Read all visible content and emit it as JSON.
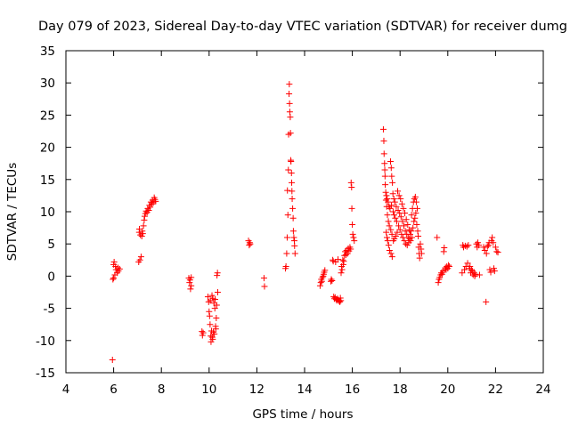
{
  "chart_data": {
    "type": "scatter",
    "title": "Day 079 of 2023, Sidereal Day-to-day VTEC variation (SDTVAR) for receiver dumg",
    "xlabel": "GPS time / hours",
    "ylabel": "SDTVAR / TECUs",
    "xlim": [
      4,
      24
    ],
    "ylim": [
      -15,
      35
    ],
    "xticks": [
      "4",
      "6",
      "8",
      "10",
      "12",
      "14",
      "16",
      "18",
      "20",
      "22",
      "24"
    ],
    "yticks": [
      "-15",
      "-10",
      "-5",
      "0",
      "5",
      "10",
      "15",
      "20",
      "25",
      "30",
      "35"
    ],
    "grid": false,
    "marker": "+",
    "color": "#ff0000",
    "series": [
      {
        "name": "SDTVAR",
        "points": [
          [
            5.95,
            -13.0
          ],
          [
            5.97,
            -0.5
          ],
          [
            6.0,
            -0.3
          ],
          [
            6.0,
            1.8
          ],
          [
            6.02,
            2.2
          ],
          [
            6.05,
            0.2
          ],
          [
            6.08,
            1.5
          ],
          [
            6.1,
            1.0
          ],
          [
            6.15,
            0.5
          ],
          [
            6.18,
            1.3
          ],
          [
            6.2,
            0.8
          ],
          [
            6.25,
            1.1
          ],
          [
            7.05,
            2.2
          ],
          [
            7.07,
            6.8
          ],
          [
            7.08,
            7.3
          ],
          [
            7.1,
            2.5
          ],
          [
            7.12,
            6.4
          ],
          [
            7.15,
            3.0
          ],
          [
            7.18,
            6.2
          ],
          [
            7.2,
            7.0
          ],
          [
            7.22,
            6.6
          ],
          [
            7.25,
            7.8
          ],
          [
            7.28,
            8.7
          ],
          [
            7.3,
            9.3
          ],
          [
            7.33,
            9.7
          ],
          [
            7.36,
            10.1
          ],
          [
            7.4,
            9.9
          ],
          [
            7.43,
            10.5
          ],
          [
            7.47,
            10.2
          ],
          [
            7.5,
            11.0
          ],
          [
            7.53,
            10.7
          ],
          [
            7.56,
            11.5
          ],
          [
            7.6,
            11.2
          ],
          [
            7.63,
            11.8
          ],
          [
            7.66,
            11.4
          ],
          [
            7.7,
            12.2
          ],
          [
            7.73,
            11.9
          ],
          [
            7.76,
            11.6
          ],
          [
            9.15,
            -0.3
          ],
          [
            9.18,
            -1.0
          ],
          [
            9.2,
            -0.6
          ],
          [
            9.22,
            -2.0
          ],
          [
            9.25,
            -0.2
          ],
          [
            9.25,
            -1.5
          ],
          [
            9.7,
            -8.6
          ],
          [
            9.72,
            -9.2
          ],
          [
            9.75,
            -8.8
          ],
          [
            9.95,
            -3.2
          ],
          [
            9.98,
            -4.0
          ],
          [
            10.0,
            -5.5
          ],
          [
            10.02,
            -6.2
          ],
          [
            10.04,
            -7.5
          ],
          [
            10.05,
            -3.8
          ],
          [
            10.07,
            -9.3
          ],
          [
            10.08,
            -10.2
          ],
          [
            10.1,
            -8.5
          ],
          [
            10.12,
            -3.0
          ],
          [
            10.13,
            -9.5
          ],
          [
            10.15,
            -9.8
          ],
          [
            10.16,
            -3.5
          ],
          [
            10.18,
            -8.7
          ],
          [
            10.2,
            -4.2
          ],
          [
            10.22,
            -9.0
          ],
          [
            10.24,
            -5.0
          ],
          [
            10.25,
            -3.6
          ],
          [
            10.27,
            -7.8
          ],
          [
            10.28,
            -8.2
          ],
          [
            10.3,
            -6.5
          ],
          [
            10.32,
            -4.5
          ],
          [
            10.33,
            0.1
          ],
          [
            10.35,
            0.5
          ],
          [
            10.36,
            -2.5
          ],
          [
            11.65,
            5.5
          ],
          [
            11.68,
            4.8
          ],
          [
            11.7,
            5.2
          ],
          [
            11.72,
            5.0
          ],
          [
            12.3,
            -0.3
          ],
          [
            12.32,
            -1.6
          ],
          [
            13.2,
            1.2
          ],
          [
            13.22,
            1.5
          ],
          [
            13.25,
            3.5
          ],
          [
            13.27,
            6.0
          ],
          [
            13.28,
            13.3
          ],
          [
            13.3,
            9.5
          ],
          [
            13.32,
            16.5
          ],
          [
            13.33,
            22.0
          ],
          [
            13.35,
            28.3
          ],
          [
            13.36,
            29.8
          ],
          [
            13.37,
            26.8
          ],
          [
            13.38,
            25.5
          ],
          [
            13.4,
            24.7
          ],
          [
            13.41,
            22.2
          ],
          [
            13.42,
            18.0
          ],
          [
            13.43,
            17.8
          ],
          [
            13.45,
            16.0
          ],
          [
            13.46,
            14.5
          ],
          [
            13.47,
            13.2
          ],
          [
            13.48,
            12.0
          ],
          [
            13.5,
            10.5
          ],
          [
            13.52,
            9.0
          ],
          [
            13.53,
            7.0
          ],
          [
            13.55,
            6.0
          ],
          [
            13.57,
            5.5
          ],
          [
            13.58,
            4.7
          ],
          [
            13.6,
            3.5
          ],
          [
            14.65,
            -1.5
          ],
          [
            14.68,
            -1.0
          ],
          [
            14.7,
            -0.5
          ],
          [
            14.72,
            -0.8
          ],
          [
            14.75,
            -0.2
          ],
          [
            14.78,
            0.0
          ],
          [
            14.8,
            0.3
          ],
          [
            14.82,
            0.6
          ],
          [
            14.85,
            0.9
          ],
          [
            15.1,
            -0.8
          ],
          [
            15.12,
            -0.5
          ],
          [
            15.15,
            -0.7
          ],
          [
            15.18,
            2.5
          ],
          [
            15.2,
            2.3
          ],
          [
            15.22,
            -3.2
          ],
          [
            15.25,
            -3.5
          ],
          [
            15.28,
            -3.3
          ],
          [
            15.3,
            2.2
          ],
          [
            15.32,
            -3.6
          ],
          [
            15.35,
            -3.8
          ],
          [
            15.38,
            -3.5
          ],
          [
            15.4,
            2.6
          ],
          [
            15.42,
            -3.7
          ],
          [
            15.45,
            -3.9
          ],
          [
            15.48,
            -4.0
          ],
          [
            15.5,
            -3.4
          ],
          [
            15.52,
            -3.8
          ],
          [
            15.53,
            0.5
          ],
          [
            15.55,
            1.5
          ],
          [
            15.57,
            1.0
          ],
          [
            15.6,
            2.5
          ],
          [
            15.62,
            1.8
          ],
          [
            15.64,
            2.3
          ],
          [
            15.67,
            3.2
          ],
          [
            15.7,
            3.8
          ],
          [
            15.73,
            3.3
          ],
          [
            15.76,
            4.0
          ],
          [
            15.8,
            3.5
          ],
          [
            15.83,
            4.3
          ],
          [
            15.86,
            3.9
          ],
          [
            15.9,
            4.5
          ],
          [
            15.93,
            4.2
          ],
          [
            15.95,
            14.5
          ],
          [
            15.97,
            13.8
          ],
          [
            15.98,
            10.5
          ],
          [
            16.0,
            8.0
          ],
          [
            16.02,
            6.5
          ],
          [
            16.05,
            6.0
          ],
          [
            16.08,
            5.5
          ],
          [
            17.3,
            22.8
          ],
          [
            17.32,
            21.0
          ],
          [
            17.33,
            19.0
          ],
          [
            17.35,
            17.5
          ],
          [
            17.36,
            16.5
          ],
          [
            17.37,
            15.5
          ],
          [
            17.38,
            14.2
          ],
          [
            17.4,
            13.0
          ],
          [
            17.41,
            11.8
          ],
          [
            17.42,
            6.8
          ],
          [
            17.43,
            12.5
          ],
          [
            17.44,
            10.8
          ],
          [
            17.45,
            6.0
          ],
          [
            17.46,
            12.0
          ],
          [
            17.47,
            9.5
          ],
          [
            17.48,
            5.5
          ],
          [
            17.5,
            11.5
          ],
          [
            17.51,
            8.5
          ],
          [
            17.52,
            4.8
          ],
          [
            17.54,
            10.8
          ],
          [
            17.55,
            7.8
          ],
          [
            17.56,
            4.0
          ],
          [
            17.58,
            10.5
          ],
          [
            17.6,
            17.8
          ],
          [
            17.61,
            7.2
          ],
          [
            17.62,
            3.5
          ],
          [
            17.63,
            16.8
          ],
          [
            17.64,
            11.0
          ],
          [
            17.65,
            15.5
          ],
          [
            17.66,
            6.5
          ],
          [
            17.67,
            3.0
          ],
          [
            17.68,
            14.5
          ],
          [
            17.7,
            12.8
          ],
          [
            17.71,
            10.0
          ],
          [
            17.72,
            5.5
          ],
          [
            17.74,
            12.0
          ],
          [
            17.75,
            9.5
          ],
          [
            17.76,
            5.8
          ],
          [
            17.78,
            11.5
          ],
          [
            17.8,
            9.0
          ],
          [
            17.82,
            6.2
          ],
          [
            17.84,
            10.8
          ],
          [
            17.86,
            8.5
          ],
          [
            17.88,
            6.8
          ],
          [
            17.9,
            13.2
          ],
          [
            17.92,
            10.2
          ],
          [
            17.94,
            7.8
          ],
          [
            17.96,
            12.5
          ],
          [
            17.98,
            9.8
          ],
          [
            18.0,
            7.2
          ],
          [
            18.02,
            12.0
          ],
          [
            18.04,
            9.2
          ],
          [
            18.06,
            6.5
          ],
          [
            18.08,
            11.2
          ],
          [
            18.1,
            8.5
          ],
          [
            18.12,
            6.0
          ],
          [
            18.14,
            10.5
          ],
          [
            18.16,
            7.8
          ],
          [
            18.18,
            5.5
          ],
          [
            18.2,
            9.8
          ],
          [
            18.22,
            7.0
          ],
          [
            18.24,
            5.0
          ],
          [
            18.26,
            8.8
          ],
          [
            18.28,
            6.5
          ],
          [
            18.3,
            4.8
          ],
          [
            18.32,
            8.0
          ],
          [
            18.34,
            6.0
          ],
          [
            18.36,
            5.2
          ],
          [
            18.38,
            7.2
          ],
          [
            18.4,
            5.8
          ],
          [
            18.42,
            6.5
          ],
          [
            18.44,
            5.5
          ],
          [
            18.46,
            7.0
          ],
          [
            18.48,
            9.5
          ],
          [
            18.5,
            6.0
          ],
          [
            18.52,
            10.5
          ],
          [
            18.54,
            7.5
          ],
          [
            18.56,
            11.5
          ],
          [
            18.58,
            8.5
          ],
          [
            18.6,
            12.0
          ],
          [
            18.62,
            9.0
          ],
          [
            18.64,
            12.3
          ],
          [
            18.66,
            9.8
          ],
          [
            18.68,
            11.5
          ],
          [
            18.7,
            8.0
          ],
          [
            18.72,
            10.5
          ],
          [
            18.74,
            7.0
          ],
          [
            18.76,
            6.2
          ],
          [
            18.78,
            4.5
          ],
          [
            18.8,
            3.5
          ],
          [
            18.82,
            2.8
          ],
          [
            18.85,
            5.0
          ],
          [
            18.88,
            4.2
          ],
          [
            18.9,
            3.5
          ],
          [
            19.55,
            6.0
          ],
          [
            19.6,
            -1.0
          ],
          [
            19.63,
            -0.5
          ],
          [
            19.66,
            -0.2
          ],
          [
            19.7,
            0.2
          ],
          [
            19.73,
            0.5
          ],
          [
            19.76,
            0.3
          ],
          [
            19.8,
            0.8
          ],
          [
            19.83,
            3.8
          ],
          [
            19.85,
            4.4
          ],
          [
            19.88,
            1.0
          ],
          [
            19.9,
            1.3
          ],
          [
            19.93,
            1.0
          ],
          [
            19.96,
            1.5
          ],
          [
            20.0,
            1.2
          ],
          [
            20.03,
            1.7
          ],
          [
            20.06,
            1.5
          ],
          [
            20.6,
            0.5
          ],
          [
            20.63,
            4.8
          ],
          [
            20.66,
            4.5
          ],
          [
            20.7,
            1.0
          ],
          [
            20.73,
            4.7
          ],
          [
            20.76,
            1.5
          ],
          [
            20.8,
            4.6
          ],
          [
            20.83,
            2.0
          ],
          [
            20.86,
            4.8
          ],
          [
            20.9,
            1.2
          ],
          [
            20.93,
            1.5
          ],
          [
            20.96,
            0.5
          ],
          [
            21.0,
            1.0
          ],
          [
            21.03,
            0.8
          ],
          [
            21.06,
            0.2
          ],
          [
            21.1,
            0.5
          ],
          [
            21.13,
            0.0
          ],
          [
            21.16,
            0.3
          ],
          [
            21.2,
            5.0
          ],
          [
            21.23,
            4.5
          ],
          [
            21.26,
            5.2
          ],
          [
            21.3,
            4.8
          ],
          [
            21.33,
            0.2
          ],
          [
            21.5,
            4.5
          ],
          [
            21.55,
            4.0
          ],
          [
            21.6,
            -4.0
          ],
          [
            21.62,
            3.5
          ],
          [
            21.66,
            4.6
          ],
          [
            21.7,
            4.8
          ],
          [
            21.73,
            5.2
          ],
          [
            21.76,
            1.0
          ],
          [
            21.8,
            0.6
          ],
          [
            21.83,
            5.5
          ],
          [
            21.86,
            6.0
          ],
          [
            21.9,
            5.2
          ],
          [
            21.93,
            1.2
          ],
          [
            21.96,
            0.8
          ],
          [
            22.0,
            4.5
          ],
          [
            22.05,
            3.8
          ],
          [
            22.1,
            3.7
          ]
        ]
      }
    ]
  }
}
